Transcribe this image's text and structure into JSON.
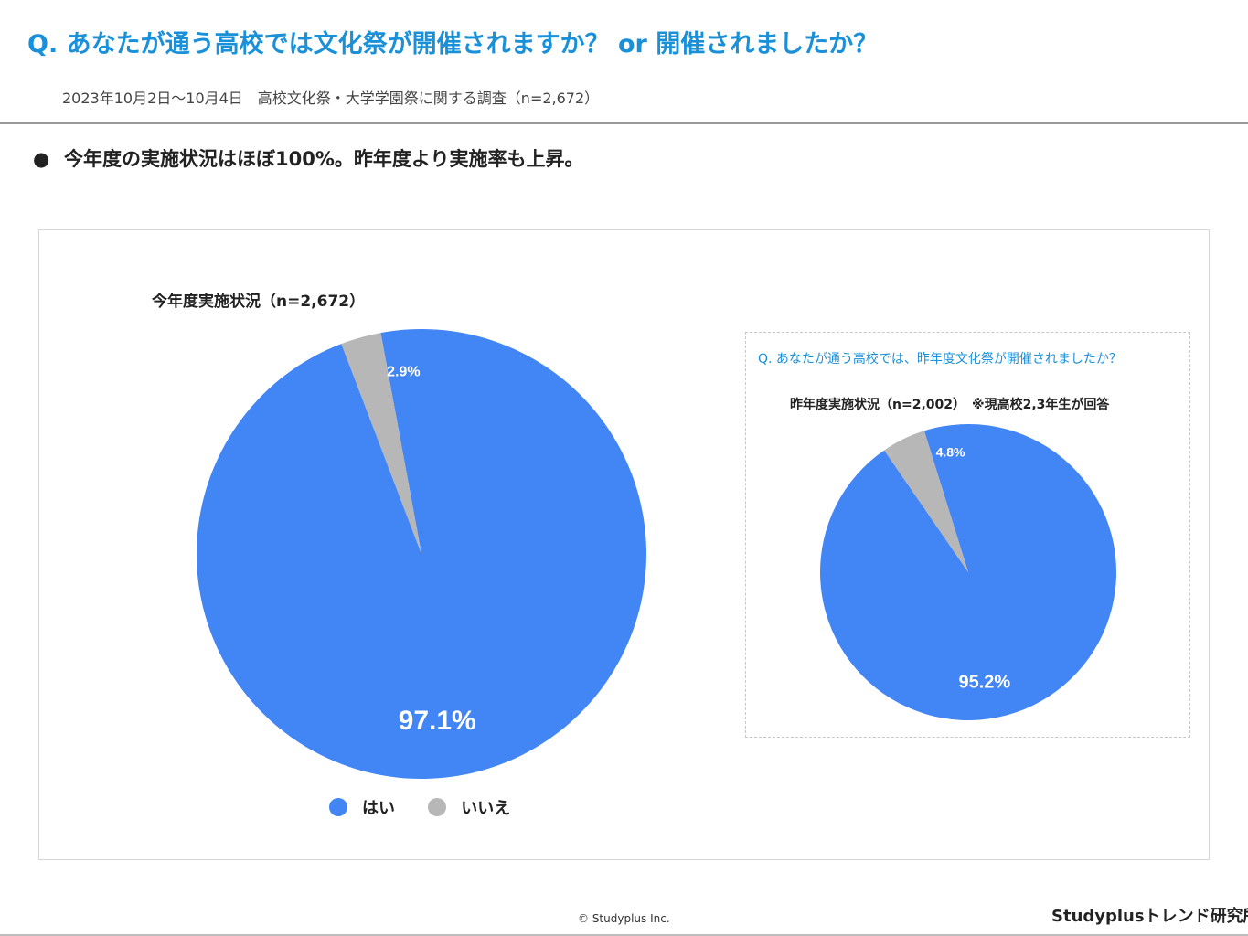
{
  "header": {
    "question": "Q. あなたが通う高校では文化祭が開催されますか？ or 開催されましたか？",
    "survey_info": "2023年10月2日～10月4日　高校文化祭・大学学園祭に関する調査（n=2,672）"
  },
  "bullet": {
    "marker": "●",
    "text": "今年度の実施状況はほぼ100%。昨年度より実施率も上昇。"
  },
  "inset": {
    "question": "Q. あなたが通う高校では、昨年度文化祭が開催されましたか？"
  },
  "colors": {
    "yes": "#4285f4",
    "no": "#b7b7b7",
    "accent": "#1a90d9"
  },
  "chart_data": [
    {
      "type": "pie",
      "title": "今年度実施状況（n=2,672）",
      "categories": [
        "はい",
        "いいえ"
      ],
      "values": [
        97.1,
        2.9
      ],
      "labels": [
        "97.1%",
        "2.9%"
      ],
      "colors": [
        "#4285f4",
        "#b7b7b7"
      ],
      "legend": "bottom"
    },
    {
      "type": "pie",
      "title": "昨年度実施状況（n=2,002）　※現高校2,3年生が回答",
      "categories": [
        "はい",
        "いいえ"
      ],
      "values": [
        95.2,
        4.8
      ],
      "labels": [
        "95.2%",
        "4.8%"
      ],
      "colors": [
        "#4285f4",
        "#b7b7b7"
      ],
      "legend": "none"
    }
  ],
  "legend": {
    "items": [
      {
        "label": "はい"
      },
      {
        "label": "いいえ"
      }
    ]
  },
  "footer": {
    "copyright": "© Studyplus Inc.",
    "brand": "Studyplusトレンド研究所"
  }
}
